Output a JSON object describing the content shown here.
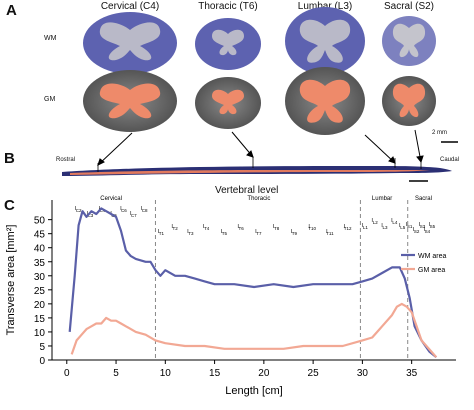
{
  "panels": {
    "a": "A",
    "b": "B",
    "c": "C"
  },
  "panel_a": {
    "segments": [
      {
        "label": "Cervical (C4)",
        "wm_color": "#6b6fb8",
        "gm_color": "#ee8a6a"
      },
      {
        "label": "Thoracic (T6)",
        "wm_color": "#6b6fb8",
        "gm_color": "#ee8a6a"
      },
      {
        "label": "Lumbar (L3)",
        "wm_color": "#6b6fb8",
        "gm_color": "#ee8a6a"
      },
      {
        "label": "Sacral (S2)",
        "wm_color": "#6b6fb8",
        "gm_color": "#ee8a6a"
      }
    ],
    "row_wm": "WM",
    "row_gm": "GM",
    "scale_bar": "2 mm"
  },
  "panel_b": {
    "rostral": "Rostral",
    "caudal": "Caudal",
    "vertebral_level": "Vertebral level"
  },
  "chart_data": {
    "type": "line",
    "xlabel": "Length [cm]",
    "ylabel": "Transverse area [mm²]",
    "xlim": [
      -1.5,
      39.5
    ],
    "ylim": [
      0,
      57
    ],
    "xticks": [
      0,
      5,
      10,
      15,
      20,
      25,
      30,
      35
    ],
    "yticks": [
      0,
      5,
      10,
      15,
      20,
      25,
      30,
      35,
      40,
      45,
      50
    ],
    "series": [
      {
        "name": "WM area",
        "color": "#5a5fa8",
        "x": [
          0.3,
          0.8,
          1.2,
          1.6,
          2.0,
          2.5,
          3.0,
          3.5,
          4.0,
          4.5,
          5.0,
          5.5,
          6.0,
          6.5,
          7.0,
          8.0,
          8.5,
          9.0,
          9.5,
          10.0,
          11.0,
          12.0,
          13.0,
          14.0,
          15.0,
          17.0,
          19.0,
          21.0,
          23.0,
          25.0,
          27.0,
          29.0,
          30.0,
          31.0,
          32.0,
          33.0,
          33.8,
          34.3,
          34.8,
          35.3,
          36.0,
          36.8,
          37.5
        ],
        "y": [
          10,
          30,
          48,
          53,
          51,
          53,
          52,
          54,
          53,
          52,
          51,
          46,
          39,
          37,
          36,
          35,
          35,
          32,
          30,
          32,
          30,
          30,
          29,
          28,
          27,
          27,
          26,
          27,
          26,
          27,
          27,
          27,
          28,
          29,
          31,
          33,
          33,
          29,
          22,
          12,
          7,
          3,
          1
        ]
      },
      {
        "name": "GM area",
        "color": "#f2a894",
        "x": [
          0.5,
          1.0,
          1.5,
          2.0,
          2.5,
          3.0,
          3.5,
          4.0,
          4.5,
          5.0,
          5.5,
          6.0,
          7.0,
          8.0,
          9.0,
          10.0,
          12.0,
          14.0,
          16.0,
          18.0,
          20.0,
          22.0,
          24.0,
          26.0,
          28.0,
          30.0,
          31.0,
          32.0,
          33.0,
          33.5,
          34.0,
          34.5,
          35.0,
          35.5,
          36.0,
          37.0,
          37.5
        ],
        "y": [
          2,
          7,
          9,
          11,
          12,
          13,
          13,
          15,
          14,
          14,
          13,
          12,
          10,
          9,
          7,
          6,
          5,
          5,
          4,
          4,
          4,
          4,
          5,
          5,
          5,
          7,
          8,
          12,
          16,
          19,
          20,
          19,
          17,
          12,
          7,
          3,
          1
        ]
      }
    ],
    "regions": [
      {
        "label": "Cervical",
        "x": 4.5
      },
      {
        "label": "Thoracic",
        "x": 19.5
      },
      {
        "label": "Lumbar",
        "x": 32
      },
      {
        "label": "Sacral",
        "x": 36.2
      }
    ],
    "boundaries": [
      9,
      29.8,
      34.6
    ],
    "vertebrae": [
      {
        "label": "C2",
        "x": 1.2
      },
      {
        "label": "C3",
        "x": 2.4
      },
      {
        "label": "C4",
        "x": 3.6
      },
      {
        "label": "C5",
        "x": 4.8
      },
      {
        "label": "C6",
        "x": 5.8
      },
      {
        "label": "C7",
        "x": 6.8
      },
      {
        "label": "C8",
        "x": 7.9
      },
      {
        "label": "T1",
        "x": 9.6
      },
      {
        "label": "T2",
        "x": 11.0
      },
      {
        "label": "T3",
        "x": 12.6
      },
      {
        "label": "T4",
        "x": 14.2
      },
      {
        "label": "T5",
        "x": 16.0
      },
      {
        "label": "T6",
        "x": 17.7
      },
      {
        "label": "T7",
        "x": 19.5
      },
      {
        "label": "T8",
        "x": 21.3
      },
      {
        "label": "T9",
        "x": 23.1
      },
      {
        "label": "T10",
        "x": 24.9
      },
      {
        "label": "T11",
        "x": 26.7
      },
      {
        "label": "T12",
        "x": 28.5
      },
      {
        "label": "L1",
        "x": 30.3
      },
      {
        "label": "L2",
        "x": 31.3
      },
      {
        "label": "L3",
        "x": 32.3
      },
      {
        "label": "L4",
        "x": 33.3
      },
      {
        "label": "L5",
        "x": 34.1
      },
      {
        "label": "S1",
        "x": 34.8
      },
      {
        "label": "S2",
        "x": 35.5
      },
      {
        "label": "S3",
        "x": 36.1
      },
      {
        "label": "S4",
        "x": 36.6
      },
      {
        "label": "S5",
        "x": 37.1
      }
    ],
    "legend_position": "right"
  }
}
